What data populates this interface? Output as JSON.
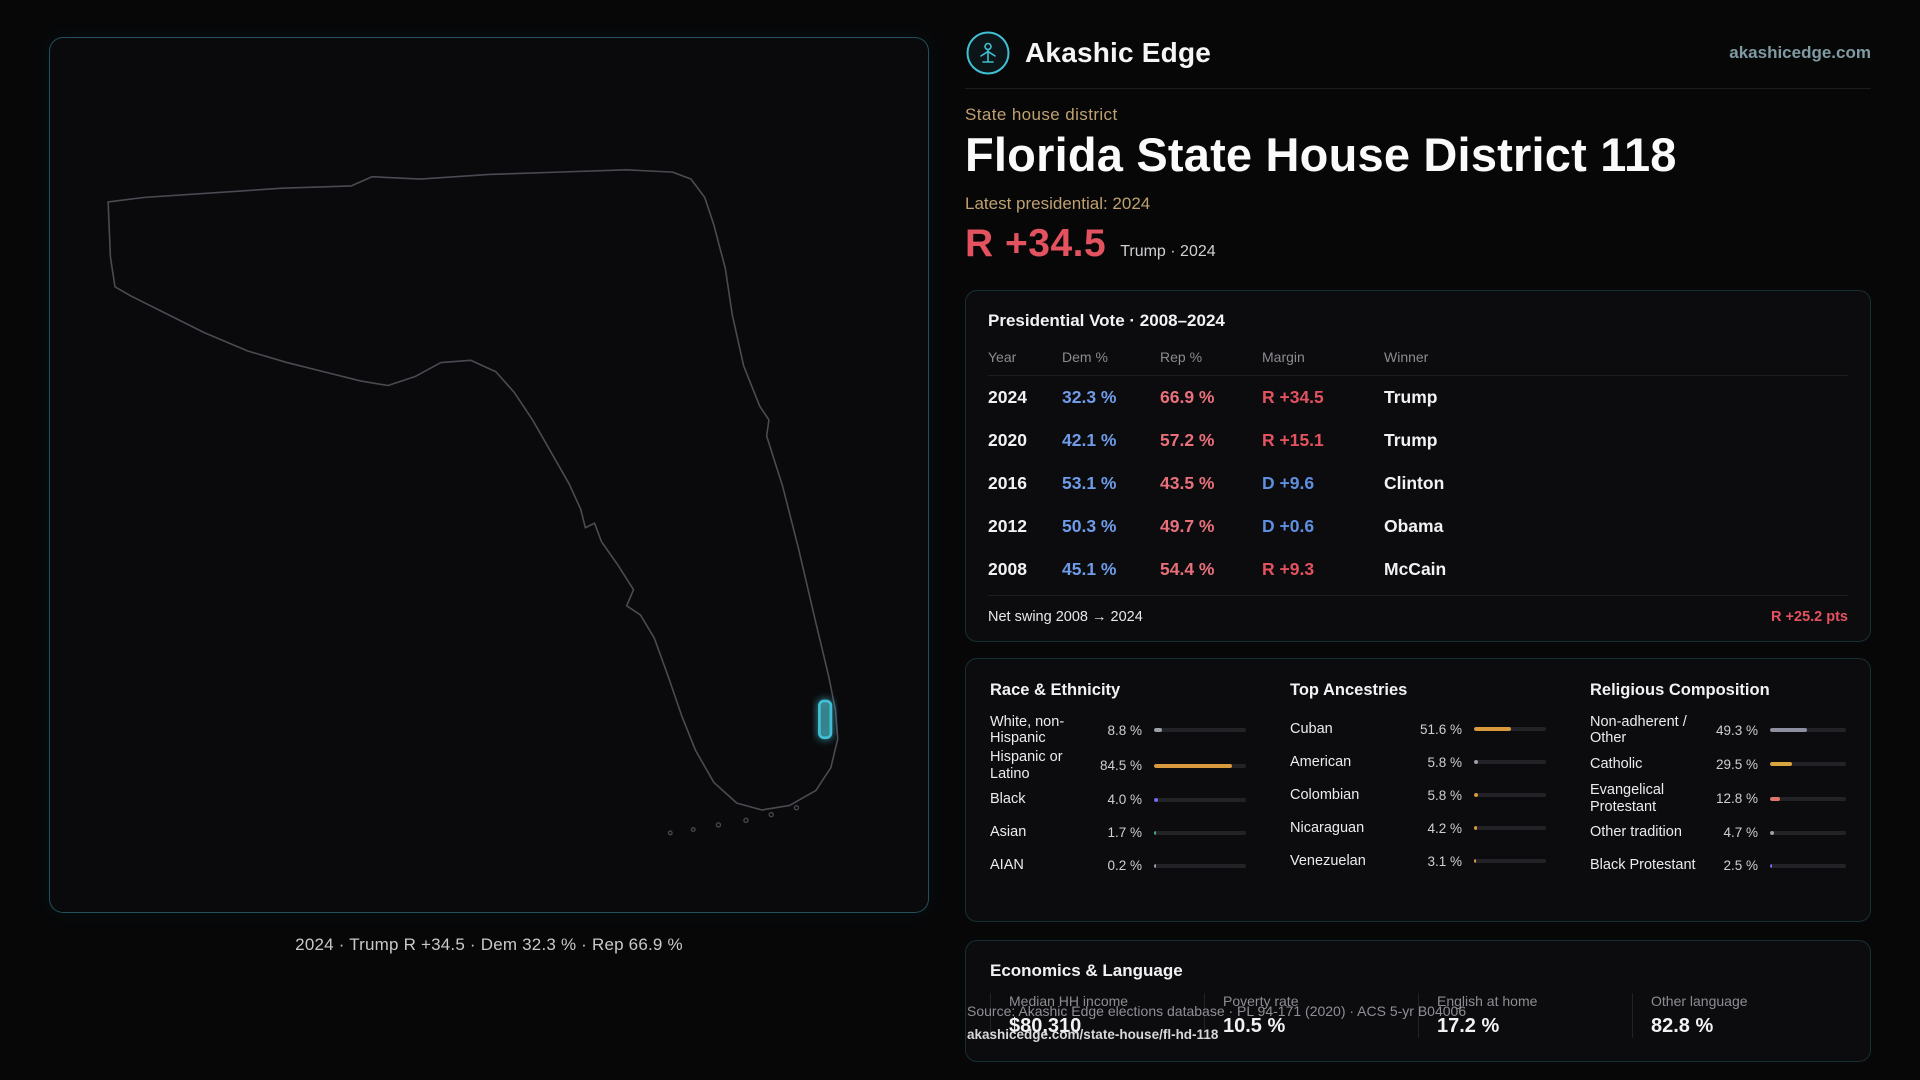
{
  "colors": {
    "accent": "#3fc0d4",
    "dem": "#6f9ce8",
    "rep": "#e9707b",
    "marginR": "#e3525f",
    "marginD": "#5f8fe0",
    "kicker": "#bfa071"
  },
  "brand": {
    "name": "Akashic Edge",
    "domain": "akashicedge.com"
  },
  "kicker": "State house district",
  "title": "Florida State House District 118",
  "latest_label": "Latest presidential: 2024",
  "headline_margin": {
    "value": "R +34.5",
    "context": "Trump · 2024"
  },
  "map": {
    "caption": "2024 · Trump R +34.5 · Dem 32.3 % · Rep 66.9 %"
  },
  "presidential": {
    "title": "Presidential Vote · 2008–2024",
    "columns": [
      "Year",
      "Dem %",
      "Rep %",
      "Margin",
      "Winner"
    ],
    "rows": [
      {
        "year": "2024",
        "dem": "32.3 %",
        "rep": "66.9 %",
        "margin": "R +34.5",
        "margin_party": "R",
        "winner": "Trump"
      },
      {
        "year": "2020",
        "dem": "42.1 %",
        "rep": "57.2 %",
        "margin": "R +15.1",
        "margin_party": "R",
        "winner": "Trump"
      },
      {
        "year": "2016",
        "dem": "53.1 %",
        "rep": "43.5 %",
        "margin": "D +9.6",
        "margin_party": "D",
        "winner": "Clinton"
      },
      {
        "year": "2012",
        "dem": "50.3 %",
        "rep": "49.7 %",
        "margin": "D +0.6",
        "margin_party": "D",
        "winner": "Obama"
      },
      {
        "year": "2008",
        "dem": "45.1 %",
        "rep": "54.4 %",
        "margin": "R +9.3",
        "margin_party": "R",
        "winner": "McCain"
      }
    ],
    "net_swing_label": "Net swing 2008 → 2024",
    "net_swing_value": "R +25.2 pts"
  },
  "race": {
    "title": "Race & Ethnicity",
    "items": [
      {
        "label": "White, non-Hispanic",
        "value": "8.8 %",
        "pct": 8.8,
        "color": "#9aa0a6"
      },
      {
        "label": "Hispanic or Latino",
        "value": "84.5 %",
        "pct": 84.5,
        "color": "#d99a3d"
      },
      {
        "label": "Black",
        "value": "4.0 %",
        "pct": 4.0,
        "color": "#6e6cf0"
      },
      {
        "label": "Asian",
        "value": "1.7 %",
        "pct": 1.7,
        "color": "#3fae7c"
      },
      {
        "label": "AIAN",
        "value": "0.2 %",
        "pct": 0.2,
        "color": "#9aa0a6"
      }
    ]
  },
  "ancestries": {
    "title": "Top Ancestries",
    "items": [
      {
        "label": "Cuban",
        "value": "51.6 %",
        "pct": 51.6,
        "color": "#d99a3d"
      },
      {
        "label": "American",
        "value": "5.8 %",
        "pct": 5.8,
        "color": "#9aa0a6"
      },
      {
        "label": "Colombian",
        "value": "5.8 %",
        "pct": 5.8,
        "color": "#d99a3d"
      },
      {
        "label": "Nicaraguan",
        "value": "4.2 %",
        "pct": 4.2,
        "color": "#d99a3d"
      },
      {
        "label": "Venezuelan",
        "value": "3.1 %",
        "pct": 3.1,
        "color": "#d99a3d"
      }
    ]
  },
  "religion": {
    "title": "Religious Composition",
    "items": [
      {
        "label": "Non-adherent / Other",
        "value": "49.3 %",
        "pct": 49.3,
        "color": "#8d8fa0"
      },
      {
        "label": "Catholic",
        "value": "29.5 %",
        "pct": 29.5,
        "color": "#d9a53f"
      },
      {
        "label": "Evangelical Protestant",
        "value": "12.8 %",
        "pct": 12.8,
        "color": "#e2756b"
      },
      {
        "label": "Other tradition",
        "value": "4.7 %",
        "pct": 4.7,
        "color": "#9aa0a6"
      },
      {
        "label": "Black Protestant",
        "value": "2.5 %",
        "pct": 2.5,
        "color": "#6e6cf0"
      }
    ]
  },
  "economics": {
    "title": "Economics & Language",
    "stats": [
      {
        "label": "Median HH income",
        "value": "$80,310"
      },
      {
        "label": "Poverty rate",
        "value": "10.5 %"
      },
      {
        "label": "English at home",
        "value": "17.2 %"
      },
      {
        "label": "Other language",
        "value": "82.8 %"
      }
    ]
  },
  "footer": {
    "source": "Source: Akashic Edge elections database · PL 94-171 (2020) · ACS 5-yr B04006",
    "permalink": "akashicedge.com/state-house/fl-hd-118"
  }
}
